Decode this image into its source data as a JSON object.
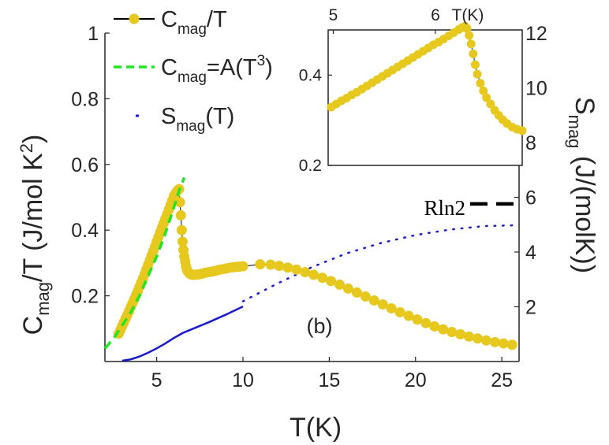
{
  "colors": {
    "cmag_marker": "#e6c81e",
    "cmag_line": "#000000",
    "fit_line": "#22e622",
    "entropy": "#1a1acc",
    "inset_line": "#1f77b4",
    "axis": "#262626"
  },
  "chart_data": [
    {
      "id": "main",
      "type": "line",
      "panel_label": "(b)",
      "xlabel": "T(K)",
      "ylabel_left": {
        "main": "C",
        "sub": "mag",
        "rest": "/T (J/mol K",
        "sup": "2",
        "end": ")"
      },
      "ylabel_right": {
        "main": "S",
        "sub": "mag",
        "rest": " (J/(molK))"
      },
      "xlim": [
        2,
        26
      ],
      "ylim_left": [
        0,
        1
      ],
      "ylim_right": [
        0,
        12
      ],
      "x_ticks": [
        5,
        10,
        15,
        20,
        25
      ],
      "x_tick_labels": [
        "5",
        "10",
        "15",
        "20",
        "25"
      ],
      "y_left_ticks": [
        0.2,
        0.4,
        0.6,
        0.8,
        1
      ],
      "y_left_tick_labels": [
        "0.2",
        "0.4",
        "0.6",
        "0.8",
        "1"
      ],
      "y_right_ticks": [
        2,
        4,
        6,
        8,
        10,
        12
      ],
      "y_right_tick_labels": [
        "2",
        "4",
        "6",
        "8",
        "10",
        "12"
      ],
      "legend": [
        {
          "label": {
            "main": "C",
            "sub": "mag",
            "rest": "/T"
          },
          "style": "line-marker"
        },
        {
          "label": {
            "main": "C",
            "sub": "mag",
            "rest": "=A(T",
            "sup": "3",
            "end": ")"
          },
          "style": "dashed"
        },
        {
          "label": {
            "main": "S",
            "sub": "mag",
            "rest": "(T)"
          },
          "style": "dotted"
        }
      ],
      "annotation": {
        "text": "Rln2",
        "value": 5.76
      },
      "series": [
        {
          "name": "Cmag/T",
          "axis": "left",
          "style": "markers",
          "x": [
            2.8,
            2.9,
            3.0,
            3.1,
            3.2,
            3.3,
            3.4,
            3.5,
            3.6,
            3.7,
            3.8,
            3.9,
            4.0,
            4.1,
            4.2,
            4.3,
            4.4,
            4.5,
            4.6,
            4.7,
            4.8,
            4.9,
            5.0,
            5.1,
            5.2,
            5.3,
            5.4,
            5.5,
            5.6,
            5.7,
            5.8,
            5.9,
            6.0,
            6.1,
            6.2,
            6.3,
            6.35,
            6.4,
            6.45,
            6.5,
            6.55,
            6.6,
            6.65,
            6.7,
            6.75,
            6.8,
            6.9,
            7.0,
            7.1,
            7.2,
            7.4,
            7.6,
            7.8,
            8.0,
            8.2,
            8.4,
            8.6,
            8.8,
            9.0,
            9.2,
            9.4,
            9.6,
            9.8,
            10.0,
            11.0,
            11.6,
            12.1,
            12.6,
            13.1,
            13.6,
            14.1,
            14.6,
            15.1,
            15.6,
            16.1,
            16.6,
            17.1,
            17.6,
            18.1,
            18.6,
            19.1,
            19.6,
            20.1,
            20.6,
            21.1,
            21.6,
            22.1,
            22.6,
            23.1,
            23.6,
            24.1,
            24.6,
            25.1,
            25.6
          ],
          "values": [
            0.085,
            0.096,
            0.108,
            0.119,
            0.131,
            0.142,
            0.154,
            0.166,
            0.178,
            0.19,
            0.202,
            0.214,
            0.227,
            0.24,
            0.253,
            0.266,
            0.28,
            0.294,
            0.308,
            0.322,
            0.336,
            0.35,
            0.365,
            0.379,
            0.393,
            0.407,
            0.42,
            0.434,
            0.448,
            0.462,
            0.476,
            0.49,
            0.504,
            0.513,
            0.52,
            0.525,
            0.485,
            0.445,
            0.4,
            0.365,
            0.34,
            0.32,
            0.305,
            0.29,
            0.28,
            0.275,
            0.268,
            0.265,
            0.264,
            0.264,
            0.265,
            0.267,
            0.27,
            0.272,
            0.274,
            0.276,
            0.279,
            0.281,
            0.283,
            0.285,
            0.287,
            0.288,
            0.289,
            0.29,
            0.296,
            0.295,
            0.291,
            0.286,
            0.28,
            0.272,
            0.264,
            0.255,
            0.245,
            0.234,
            0.222,
            0.21,
            0.198,
            0.186,
            0.174,
            0.162,
            0.15,
            0.139,
            0.128,
            0.117,
            0.107,
            0.098,
            0.09,
            0.083,
            0.076,
            0.07,
            0.064,
            0.059,
            0.055,
            0.051
          ]
        },
        {
          "name": "Cmag=A(T^3)",
          "axis": "left",
          "style": "dashed",
          "x": [
            2.0,
            2.5,
            3.0,
            3.5,
            4.0,
            4.5,
            5.0,
            5.5,
            6.0,
            6.3,
            6.6
          ],
          "values": [
            0.04,
            0.07,
            0.11,
            0.15,
            0.2,
            0.26,
            0.32,
            0.39,
            0.47,
            0.52,
            0.56
          ]
        },
        {
          "name": "Smag(T) measured",
          "axis": "right",
          "style": "solid",
          "x": [
            3.0,
            3.5,
            4.0,
            4.5,
            5.0,
            5.5,
            6.0,
            6.5,
            7.0,
            7.5,
            8.0,
            8.5,
            9.0,
            9.5,
            10.0
          ],
          "values": [
            0.03,
            0.08,
            0.18,
            0.32,
            0.48,
            0.66,
            0.86,
            1.04,
            1.17,
            1.3,
            1.43,
            1.57,
            1.71,
            1.86,
            2.01
          ]
        },
        {
          "name": "Smag(T) extrapolated",
          "axis": "right",
          "style": "dotted",
          "x": [
            10.0,
            12.0,
            14.0,
            16.0,
            18.0,
            20.0,
            22.0,
            24.0,
            26.0
          ],
          "values": [
            2.2,
            2.85,
            3.45,
            3.95,
            4.33,
            4.62,
            4.82,
            4.95,
            4.98
          ]
        }
      ]
    },
    {
      "id": "inset",
      "type": "line",
      "xlabel": "T(K)",
      "xlim": [
        4.95,
        6.85
      ],
      "ylim": [
        0.2,
        0.5
      ],
      "x_ticks": [
        5,
        6
      ],
      "x_tick_labels": [
        "5",
        "6"
      ],
      "y_ticks": [
        0.2,
        0.4
      ],
      "y_tick_labels": [
        "0.2",
        "0.4"
      ],
      "series": [
        {
          "name": "Cmag/T zoom",
          "style": "line-markers",
          "x": [
            4.98,
            5.03,
            5.08,
            5.13,
            5.18,
            5.23,
            5.28,
            5.33,
            5.38,
            5.43,
            5.48,
            5.53,
            5.58,
            5.63,
            5.68,
            5.73,
            5.78,
            5.83,
            5.88,
            5.93,
            5.98,
            6.03,
            6.08,
            6.13,
            6.18,
            6.23,
            6.26,
            6.29,
            6.31,
            6.33,
            6.35,
            6.37,
            6.39,
            6.41,
            6.44,
            6.47,
            6.5,
            6.54,
            6.58,
            6.62,
            6.66,
            6.7,
            6.75,
            6.8,
            6.85
          ],
          "values": [
            0.329,
            0.336,
            0.343,
            0.349,
            0.356,
            0.362,
            0.369,
            0.376,
            0.383,
            0.39,
            0.397,
            0.404,
            0.411,
            0.418,
            0.425,
            0.432,
            0.439,
            0.446,
            0.453,
            0.46,
            0.467,
            0.473,
            0.48,
            0.487,
            0.494,
            0.501,
            0.505,
            0.508,
            0.503,
            0.488,
            0.469,
            0.447,
            0.423,
            0.402,
            0.382,
            0.365,
            0.35,
            0.336,
            0.322,
            0.311,
            0.301,
            0.293,
            0.285,
            0.28,
            0.277
          ]
        }
      ]
    }
  ]
}
